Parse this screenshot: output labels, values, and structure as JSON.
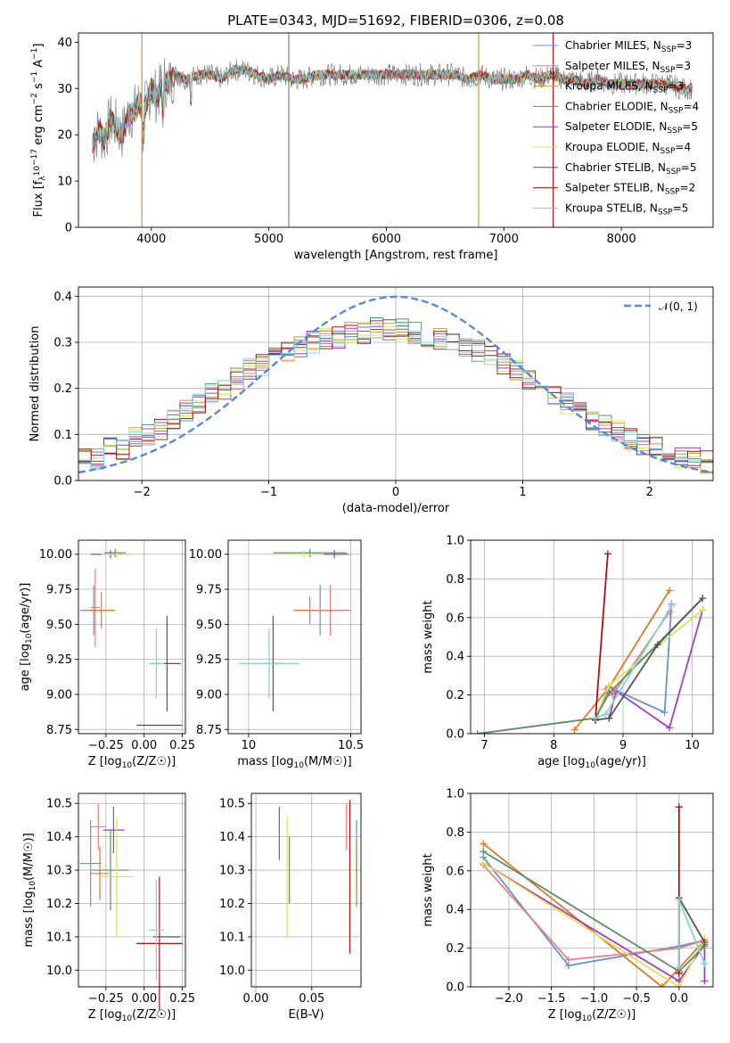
{
  "chart_data": [
    {
      "type": "line",
      "title": "PLATE=0343, MJD=51692, FIBERID=0306, z=0.08",
      "xlabel": "wavelength [Angstrom, rest frame]",
      "ylabel": "Flux [f_λ 10^-17 erg cm^-2 s^-1 A^-1]",
      "xlim": [
        3380,
        8780
      ],
      "ylim": [
        0,
        42
      ],
      "xticks": [
        "4000",
        "5000",
        "6000",
        "7000",
        "8000"
      ],
      "yticks": [
        "0",
        "10",
        "20",
        "30",
        "40"
      ],
      "grid": false,
      "legend_position": "right",
      "spectrum": {
        "x": [
          3500,
          3550,
          3600,
          3650,
          3700,
          3750,
          3800,
          3850,
          3900,
          3950,
          4000,
          4050,
          4100,
          4150,
          4200,
          4300,
          4400,
          4500,
          4600,
          4700,
          4800,
          4900,
          5000,
          5100,
          5200,
          5300,
          5400,
          5500,
          5600,
          5700,
          5800,
          5900,
          6000,
          6100,
          6200,
          6300,
          6400,
          6500,
          6600,
          6700,
          6800,
          6900,
          7000,
          7100,
          7200,
          7300,
          7400,
          7500,
          7600,
          7700,
          7800,
          7900,
          8000,
          8100,
          8200,
          8300,
          8400,
          8500,
          8600
        ],
        "y": [
          18,
          21,
          19,
          23,
          22,
          20,
          24,
          25,
          27,
          26,
          30,
          28,
          32,
          31,
          33,
          32,
          33,
          33,
          32,
          34,
          34,
          33,
          32,
          33,
          32,
          32,
          33,
          33,
          33,
          33,
          33,
          33,
          33,
          33,
          33,
          33,
          33,
          33,
          33,
          32,
          33,
          32,
          32,
          32,
          33,
          32,
          33,
          32,
          32,
          31,
          32,
          31,
          31,
          31,
          31,
          31,
          31,
          30,
          30
        ]
      },
      "series": [
        {
          "name": "Chabrier MILES, N_SSP=3",
          "color": "#6a8fd9"
        },
        {
          "name": "Salpeter MILES, N_SSP=3",
          "color": "#ee7f7f"
        },
        {
          "name": "Kroupa MILES, N_SSP=3",
          "color": "#c89a3a"
        },
        {
          "name": "Chabrier ELODIE, N_SSP=4",
          "color": "#5e8c6a"
        },
        {
          "name": "Salpeter ELODIE, N_SSP=5",
          "color": "#a23fbf"
        },
        {
          "name": "Kroupa ELODIE, N_SSP=4",
          "color": "#e0e05a"
        },
        {
          "name": "Chabrier STELIB, N_SSP=5",
          "color": "#555555"
        },
        {
          "name": "Salpeter STELIB, N_SSP=2",
          "color": "#b01010"
        },
        {
          "name": "Kroupa STELIB, N_SSP=5",
          "color": "#7fd6d6"
        }
      ],
      "data_color": "#808080"
    },
    {
      "type": "line",
      "xlabel": "(data-model)/error",
      "ylabel": "Normed distribution",
      "xlim": [
        -2.5,
        2.5
      ],
      "ylim": [
        0,
        0.42
      ],
      "xticks": [
        "−2",
        "−1",
        "0",
        "1",
        "2"
      ],
      "yticks": [
        "0.0",
        "0.1",
        "0.2",
        "0.3",
        "0.4"
      ],
      "grid": true,
      "legend_position": "top-right",
      "legend": "𝒩(0, 1)",
      "hist_centers": [
        -2.45,
        -2.35,
        -2.25,
        -2.15,
        -2.05,
        -1.95,
        -1.85,
        -1.75,
        -1.65,
        -1.55,
        -1.45,
        -1.35,
        -1.25,
        -1.15,
        -1.05,
        -0.95,
        -0.85,
        -0.75,
        -0.65,
        -0.55,
        -0.45,
        -0.35,
        -0.25,
        -0.15,
        -0.05,
        0.05,
        0.15,
        0.25,
        0.35,
        0.45,
        0.55,
        0.65,
        0.75,
        0.85,
        0.95,
        1.05,
        1.15,
        1.25,
        1.35,
        1.45,
        1.55,
        1.65,
        1.75,
        1.85,
        1.95,
        2.05,
        2.15,
        2.25,
        2.35,
        2.45
      ],
      "hist_values": [
        0.05,
        0.05,
        0.07,
        0.07,
        0.09,
        0.1,
        0.11,
        0.13,
        0.15,
        0.17,
        0.19,
        0.2,
        0.22,
        0.24,
        0.25,
        0.27,
        0.28,
        0.29,
        0.3,
        0.31,
        0.31,
        0.32,
        0.32,
        0.33,
        0.33,
        0.33,
        0.32,
        0.31,
        0.31,
        0.3,
        0.29,
        0.28,
        0.27,
        0.25,
        0.24,
        0.22,
        0.2,
        0.19,
        0.17,
        0.15,
        0.13,
        0.12,
        0.11,
        0.09,
        0.08,
        0.07,
        0.06,
        0.05,
        0.05,
        0.04
      ],
      "normal_color": "#5b87d6"
    },
    {
      "type": "scatter",
      "xlabel": "Z [log10(Z/Z☉)]",
      "ylabel": "age  [log10(age/yr)]",
      "xlim": [
        -0.43,
        0.27
      ],
      "ylim": [
        8.72,
        10.1
      ],
      "xticks": [
        "−0.25",
        "0.00",
        "0.25"
      ],
      "yticks": [
        "8.75",
        "9.00",
        "9.25",
        "9.50",
        "9.75",
        "10.00"
      ],
      "points": [
        {
          "x": -0.33,
          "y": 9.6,
          "xerr": 0.09,
          "yerr": 0.18,
          "color": "#6a8fd9"
        },
        {
          "x": -0.19,
          "y": 10.01,
          "xerr": 0.07,
          "yerr": 0.03,
          "color": "#5e8c6a"
        },
        {
          "x": -0.28,
          "y": 9.6,
          "xerr": 0.09,
          "yerr": 0.13,
          "color": "#e07a2a"
        },
        {
          "x": -0.22,
          "y": 10.0,
          "xerr": 0.13,
          "yerr": 0.03,
          "color": "#a23fbf"
        },
        {
          "x": -0.18,
          "y": 10.0,
          "xerr": 0.1,
          "yerr": 0.03,
          "color": "#e0e05a"
        },
        {
          "x": -0.32,
          "y": 9.62,
          "xerr": 0.03,
          "yerr": 0.28,
          "color": "#ee7f7f"
        },
        {
          "x": 0.15,
          "y": 9.22,
          "xerr": 0.09,
          "yerr": 0.34,
          "color": "#555555"
        },
        {
          "x": 0.1,
          "y": 8.78,
          "xerr": 0.15,
          "yerr": 0.0,
          "color": "#b01010"
        },
        {
          "x": 0.08,
          "y": 9.22,
          "xerr": 0.05,
          "yerr": 0.25,
          "color": "#7fd6d6"
        }
      ]
    },
    {
      "type": "scatter",
      "xlabel": "mass [log10(M/M☉)]",
      "ylabel": "",
      "xlim": [
        9.9,
        10.55
      ],
      "ylim": [
        8.72,
        10.1
      ],
      "xticks": [
        "10",
        "10.5"
      ],
      "yticks": [
        "8.75",
        "9.00",
        "9.25",
        "9.50",
        "9.75",
        "10.00"
      ],
      "points": [
        {
          "x": 10.35,
          "y": 9.6,
          "xerr": 0.09,
          "yerr": 0.18,
          "color": "#6a8fd9"
        },
        {
          "x": 10.3,
          "y": 10.01,
          "xerr": 0.18,
          "yerr": 0.03,
          "color": "#5e8c6a"
        },
        {
          "x": 10.3,
          "y": 9.6,
          "xerr": 0.08,
          "yerr": 0.1,
          "color": "#e07a2a"
        },
        {
          "x": 10.42,
          "y": 10.0,
          "xerr": 0.07,
          "yerr": 0.03,
          "color": "#a23fbf"
        },
        {
          "x": 10.27,
          "y": 10.0,
          "xerr": 0.1,
          "yerr": 0.03,
          "color": "#e0e05a"
        },
        {
          "x": 10.4,
          "y": 9.6,
          "xerr": 0.1,
          "yerr": 0.18,
          "color": "#ee7f7f"
        },
        {
          "x": 10.12,
          "y": 9.22,
          "xerr": 0.05,
          "yerr": 0.34,
          "color": "#555555"
        },
        {
          "x": 10.08,
          "y": 8.78,
          "xerr": 0.0,
          "yerr": 0.0,
          "color": "#b01010"
        },
        {
          "x": 10.1,
          "y": 9.22,
          "xerr": 0.15,
          "yerr": 0.25,
          "color": "#7fd6d6"
        }
      ]
    },
    {
      "type": "line",
      "xlabel": "age  [log10(age/yr)]",
      "ylabel": "mass weight",
      "xlim": [
        6.8,
        10.3
      ],
      "ylim": [
        0,
        1
      ],
      "xticks": [
        "7",
        "8",
        "9",
        "10"
      ],
      "yticks": [
        "0.0",
        "0.2",
        "0.4",
        "0.6",
        "0.8",
        "1.0"
      ],
      "grid": true,
      "series": [
        {
          "color": "#6a8fd9",
          "x": [
            8.6,
            8.8,
            9.6,
            9.7
          ],
          "y": [
            0.07,
            0.24,
            0.11,
            0.67
          ]
        },
        {
          "color": "#e07a2a",
          "x": [
            8.3,
            8.8,
            9.67
          ],
          "y": [
            0.02,
            0.24,
            0.74
          ]
        },
        {
          "color": "#a23fbf",
          "x": [
            8.8,
            8.9,
            9.67,
            10.15
          ],
          "y": [
            0.08,
            0.22,
            0.03,
            0.64
          ]
        },
        {
          "color": "#ee7f7f",
          "x": [
            8.75,
            8.85,
            9.67
          ],
          "y": [
            0.23,
            0.2,
            0.63
          ]
        },
        {
          "color": "#e0e05a",
          "x": [
            6.9,
            8.6,
            8.8,
            10.15
          ],
          "y": [
            0.0,
            0.08,
            0.25,
            0.64
          ]
        },
        {
          "color": "#5e8c6a",
          "x": [
            6.9,
            8.6,
            8.8,
            10.15
          ],
          "y": [
            0.0,
            0.08,
            0.21,
            0.7
          ]
        },
        {
          "color": "#555555",
          "x": [
            8.6,
            8.8,
            9.5,
            10.15
          ],
          "y": [
            0.07,
            0.08,
            0.46,
            0.7
          ]
        },
        {
          "color": "#b01010",
          "x": [
            8.6,
            8.78
          ],
          "y": [
            0.07,
            0.93
          ]
        },
        {
          "color": "#7fd6d6",
          "x": [
            8.6,
            8.75,
            9.7
          ],
          "y": [
            0.08,
            0.1,
            0.66
          ]
        }
      ]
    },
    {
      "type": "scatter",
      "xlabel": "Z [log10(Z/Z☉)]",
      "ylabel": "mass [log10(M/M☉)]",
      "xlim": [
        -0.43,
        0.27
      ],
      "ylim": [
        9.95,
        10.53
      ],
      "xticks": [
        "−0.25",
        "0.00",
        "0.25"
      ],
      "yticks": [
        "10.0",
        "10.1",
        "10.2",
        "10.3",
        "10.4",
        "10.5"
      ],
      "points": [
        {
          "x": -0.35,
          "y": 10.32,
          "xerr": 0.07,
          "yerr": 0.13,
          "color": "#6a8fd9"
        },
        {
          "x": -0.22,
          "y": 10.3,
          "xerr": 0.12,
          "yerr": 0.12,
          "color": "#5e8c6a"
        },
        {
          "x": -0.29,
          "y": 10.29,
          "xerr": 0.06,
          "yerr": 0.08,
          "color": "#e07a2a"
        },
        {
          "x": -0.2,
          "y": 10.42,
          "xerr": 0.07,
          "yerr": 0.07,
          "color": "#a23fbf"
        },
        {
          "x": -0.18,
          "y": 10.28,
          "xerr": 0.11,
          "yerr": 0.18,
          "color": "#e0e05a"
        },
        {
          "x": -0.3,
          "y": 10.43,
          "xerr": 0.05,
          "yerr": 0.07,
          "color": "#ee7f7f"
        },
        {
          "x": 0.15,
          "y": 10.1,
          "xerr": 0.09,
          "yerr": 0.0,
          "color": "#555555"
        },
        {
          "x": 0.1,
          "y": 10.08,
          "xerr": 0.15,
          "yerr": 0.2,
          "color": "#b01010"
        },
        {
          "x": 0.08,
          "y": 10.12,
          "xerr": 0.05,
          "yerr": 0.15,
          "color": "#7fd6d6"
        }
      ]
    },
    {
      "type": "scatter",
      "xlabel": "E(B-V)",
      "ylabel": "",
      "xlim": [
        -0.004,
        0.094
      ],
      "ylim": [
        9.95,
        10.53
      ],
      "xticks": [
        "0.00",
        "0.05"
      ],
      "yticks": [
        "10.0",
        "10.1",
        "10.2",
        "10.3",
        "10.4",
        "10.5"
      ],
      "points": [
        {
          "x": 0.09,
          "y": 10.35,
          "xerr": 0.0,
          "yerr": 0.1,
          "color": "#6a8fd9"
        },
        {
          "x": 0.03,
          "y": 10.3,
          "xerr": 0.0,
          "yerr": 0.1,
          "color": "#5e8c6a"
        },
        {
          "x": 0.09,
          "y": 10.29,
          "xerr": 0.0,
          "yerr": 0.1,
          "color": "#e07a2a"
        },
        {
          "x": 0.021,
          "y": 10.41,
          "xerr": 0.0,
          "yerr": 0.08,
          "color": "#a23fbf"
        },
        {
          "x": 0.028,
          "y": 10.28,
          "xerr": 0.0,
          "yerr": 0.18,
          "color": "#e0e05a"
        },
        {
          "x": 0.081,
          "y": 10.43,
          "xerr": 0.0,
          "yerr": 0.07,
          "color": "#ee7f7f"
        },
        {
          "x": 0.0,
          "y": 10.1,
          "xerr": 0.0,
          "yerr": 0.17,
          "color": "#7fd6d6"
        },
        {
          "x": 0.084,
          "y": 10.28,
          "xerr": 0.0,
          "yerr": 0.23,
          "color": "#b01010"
        }
      ]
    },
    {
      "type": "line",
      "xlabel": "Z [log10(Z/Z☉)]",
      "ylabel": "mass weight",
      "xlim": [
        -2.45,
        0.4
      ],
      "ylim": [
        0,
        1
      ],
      "xticks": [
        "−2.0",
        "−1.5",
        "−1.0",
        "−0.5",
        "0.0"
      ],
      "yticks": [
        "0.0",
        "0.2",
        "0.4",
        "0.6",
        "0.8",
        "1.0"
      ],
      "grid": true,
      "series": [
        {
          "color": "#6a8fd9",
          "x": [
            -2.3,
            -1.3,
            0.0,
            0.3
          ],
          "y": [
            0.67,
            0.11,
            0.21,
            0.24
          ]
        },
        {
          "color": "#e07a2a",
          "x": [
            -2.3,
            -0.2,
            0.3
          ],
          "y": [
            0.74,
            0.0,
            0.24
          ]
        },
        {
          "color": "#a23fbf",
          "x": [
            -2.3,
            0.0,
            0.3,
            0.3
          ],
          "y": [
            0.64,
            0.03,
            0.22,
            0.03
          ]
        },
        {
          "color": "#ee7f7f",
          "x": [
            -2.3,
            -1.3,
            0.0,
            0.3
          ],
          "y": [
            0.63,
            0.14,
            0.2,
            0.24
          ]
        },
        {
          "color": "#e0e05a",
          "x": [
            -2.3,
            0.0,
            0.3
          ],
          "y": [
            0.64,
            0.0,
            0.25
          ]
        },
        {
          "color": "#5e8c6a",
          "x": [
            -2.3,
            0.0,
            0.3
          ],
          "y": [
            0.7,
            0.08,
            0.21
          ]
        },
        {
          "color": "#555555",
          "x": [
            0.0,
            0.0,
            0.3
          ],
          "y": [
            0.07,
            0.46,
            0.23
          ]
        },
        {
          "color": "#b01010",
          "x": [
            0.0,
            0.0
          ],
          "y": [
            0.07,
            0.93
          ]
        },
        {
          "color": "#7fd6d6",
          "x": [
            0.0,
            0.0,
            0.3
          ],
          "y": [
            0.1,
            0.45,
            0.12
          ]
        }
      ]
    }
  ]
}
